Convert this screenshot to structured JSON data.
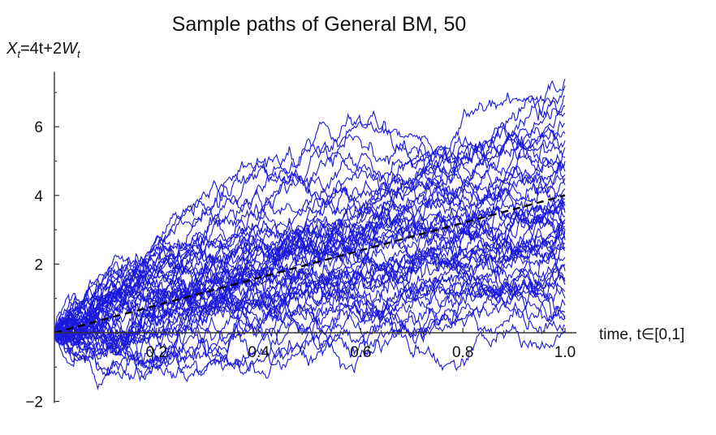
{
  "chart_data": {
    "type": "line",
    "title": "Sample paths of General BM, 50",
    "ylabel": "X_t=4t+2W_t",
    "ylabel_parts": {
      "var": "X",
      "sub": "t",
      "mid": "=4t+2",
      "var2": "W",
      "sub2": "t"
    },
    "xlabel": "time, t∈[0,1]",
    "xlim": [
      0,
      1
    ],
    "ylim": [
      -2,
      7.5
    ],
    "xticks": [
      0.2,
      0.4,
      0.6,
      0.8,
      1.0
    ],
    "xtick_labels": [
      "0.2",
      "0.4",
      "0.6",
      "0.8",
      "1.0"
    ],
    "yticks": [
      -2,
      2,
      4,
      6
    ],
    "ytick_labels": [
      "−2",
      "2",
      "4",
      "6"
    ],
    "grid": false,
    "num_paths": 50,
    "path_color": "#1a1adc",
    "series": [
      {
        "style": "dashed",
        "color": "#000000",
        "x": [
          0,
          1
        ],
        "y": [
          0,
          4
        ]
      }
    ],
    "path_endpoints": [
      7.2,
      6.9,
      6.4,
      6.1,
      5.6,
      5.4,
      5.1,
      4.9,
      4.7,
      4.5,
      4.3,
      4.2,
      4.0,
      3.9,
      3.8,
      3.7,
      3.6,
      3.5,
      3.4,
      3.3,
      3.2,
      3.1,
      3.0,
      2.9,
      2.7,
      2.5,
      2.4,
      2.2,
      2.0,
      1.8,
      1.6,
      1.4,
      1.2,
      1.0,
      0.8,
      0.6,
      0.4,
      0.2,
      0.0,
      7.4,
      5.8,
      4.6,
      3.0,
      2.6,
      1.5,
      0.5,
      6.6,
      5.0,
      3.3,
      2.8
    ]
  }
}
